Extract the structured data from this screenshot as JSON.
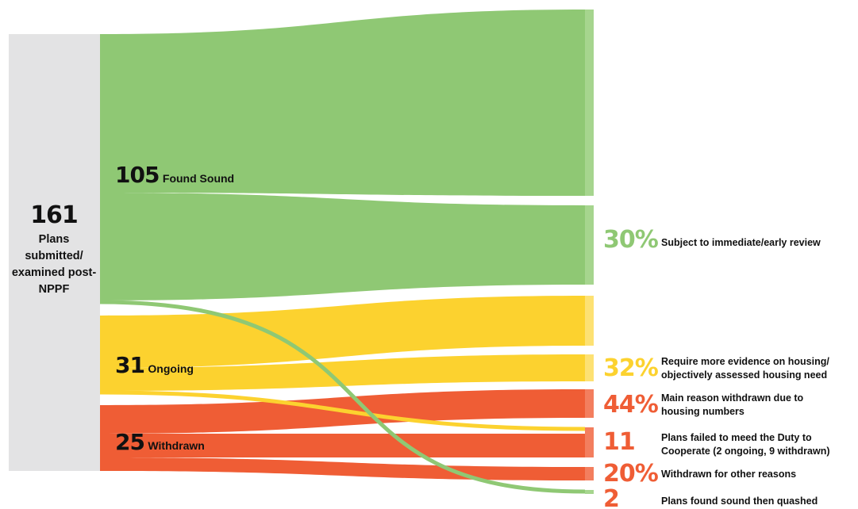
{
  "colors": {
    "source": "#e3e3e4",
    "sound": "#8fc874",
    "sound_light": "#a6d58e",
    "ongoing": "#fcd22f",
    "ongoing_light": "#fde173",
    "withdrawn": "#ef5d35",
    "withdrawn_light": "#f37e5e",
    "text": "#111111"
  },
  "source": {
    "value": "161",
    "label": "Plans submitted/ examined post-NPPF"
  },
  "flows": [
    {
      "key": "sound",
      "value": "105",
      "label": "Found Sound"
    },
    {
      "key": "ongoing",
      "value": "31",
      "label": "Ongoing"
    },
    {
      "key": "withdrawn",
      "value": "25",
      "label": "Withdrawn"
    }
  ],
  "outcomes": [
    {
      "key": "review",
      "value": "30%",
      "label": "Subject to immediate/early review",
      "color": "#8fc874"
    },
    {
      "key": "evidence",
      "value": "32%",
      "label": "Require more evidence on housing/ objectively assessed housing need",
      "color": "#fcd22f"
    },
    {
      "key": "withdrawn_housing",
      "value": "44%",
      "label": "Main reason withdrawn due to housing numbers",
      "color": "#ef5d35"
    },
    {
      "key": "duty",
      "value": "11",
      "label": "Plans failed to meed the Duty to Cooperate (2 ongoing, 9 withdrawn)",
      "color": "#ef5d35"
    },
    {
      "key": "other",
      "value": "20%",
      "label": "Withdrawn for other reasons",
      "color": "#ef5d35"
    },
    {
      "key": "quashed",
      "value": "2",
      "label": "Plans found sound then quashed",
      "color": "#ef5d35"
    }
  ]
}
